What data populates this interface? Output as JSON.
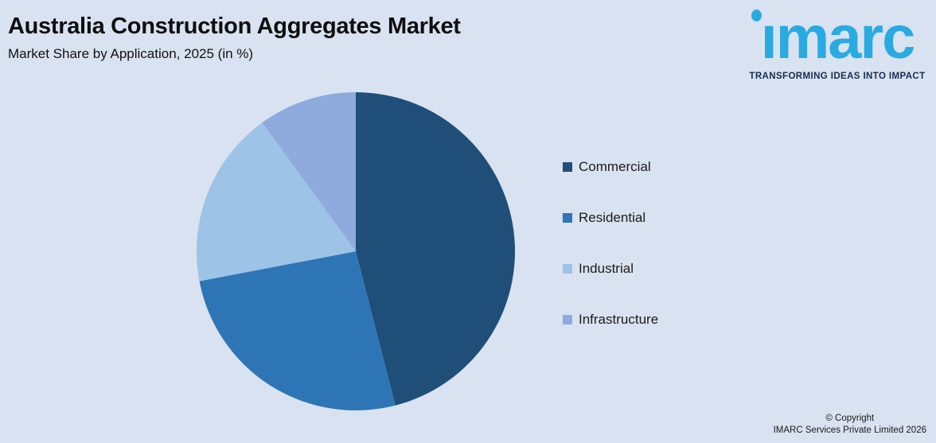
{
  "header": {
    "title": "Australia Construction Aggregates Market",
    "subtitle": "Market Share by Application, 2025 (in %)"
  },
  "logo": {
    "wordmark": "imarc",
    "tagline": "TRANSFORMING IDEAS INTO IMPACT",
    "wordmark_color": "#29ABE2",
    "tagline_color": "#152C4E"
  },
  "chart_data": {
    "type": "pie",
    "title": "Australia Construction Aggregates Market",
    "subtitle": "Market Share by Application, 2025 (in %)",
    "categories": [
      "Commercial",
      "Residential",
      "Industrial",
      "Infrastructure"
    ],
    "values": [
      46,
      26,
      18,
      10
    ],
    "unit": "%",
    "colors": [
      "#1F4E79",
      "#2E75B6",
      "#9DC3E6",
      "#8FAADC"
    ],
    "start_angle_deg": 0,
    "direction": "clockwise",
    "legend_position": "right",
    "data_labels": false
  },
  "legend": {
    "items": [
      {
        "label": "Commercial",
        "color": "#1F4E79"
      },
      {
        "label": "Residential",
        "color": "#2E75B6"
      },
      {
        "label": "Industrial",
        "color": "#9DC3E6"
      },
      {
        "label": "Infrastructure",
        "color": "#8FAADC"
      }
    ]
  },
  "footer": {
    "copyright_line1": "© Copyright",
    "copyright_line2": "IMARC Services Private Limited 2026"
  },
  "colors": {
    "background": "#D9E2F0",
    "title_text": "#0e0e0e"
  }
}
